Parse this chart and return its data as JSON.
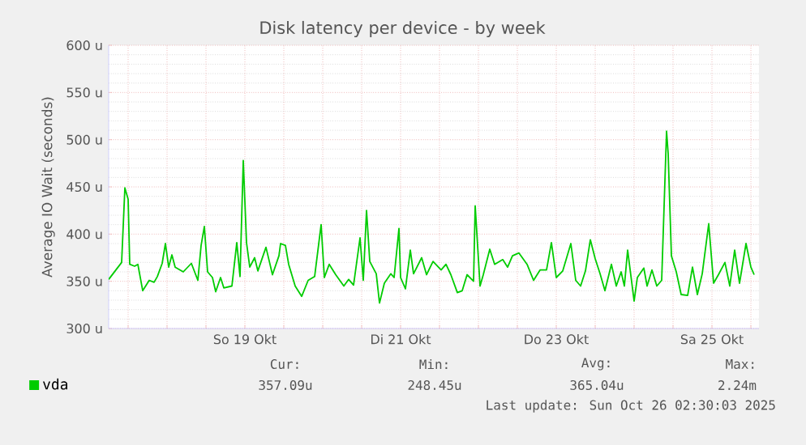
{
  "chart_data": {
    "type": "line",
    "title": "Disk latency per device - by week",
    "ylabel": "Average IO Wait (seconds)",
    "x": [
      "2025-10-17T18:00",
      "2025-10-17T22:00",
      "2025-10-17T23:00",
      "2025-10-18T00:00",
      "2025-10-18T00:30",
      "2025-10-18T02:00",
      "2025-10-18T03:00",
      "2025-10-18T04:30",
      "2025-10-18T06:30",
      "2025-10-18T08:00",
      "2025-10-18T09:00",
      "2025-10-18T10:30",
      "2025-10-18T11:30",
      "2025-10-18T12:30",
      "2025-10-18T13:30",
      "2025-10-18T14:30",
      "2025-10-18T17:00",
      "2025-10-18T19:30",
      "2025-10-18T21:30",
      "2025-10-18T22:30",
      "2025-10-18T23:30",
      "2025-10-19T00:30",
      "2025-10-19T02:00",
      "2025-10-19T03:00",
      "2025-10-19T04:30",
      "2025-10-19T05:30",
      "2025-10-19T08:00",
      "2025-10-19T09:30",
      "2025-10-19T10:30",
      "2025-10-19T11:30",
      "2025-10-19T12:30",
      "2025-10-19T13:30",
      "2025-10-19T15:00",
      "2025-10-19T16:00",
      "2025-10-19T18:30",
      "2025-10-19T20:30",
      "2025-10-19T22:30",
      "2025-10-19T23:00",
      "2025-10-20T00:30",
      "2025-10-20T01:30",
      "2025-10-20T03:30",
      "2025-10-20T05:30",
      "2025-10-20T07:30",
      "2025-10-20T09:30",
      "2025-10-20T11:30",
      "2025-10-20T12:30",
      "2025-10-20T14:00",
      "2025-10-20T16:00",
      "2025-10-20T18:30",
      "2025-10-20T20:00",
      "2025-10-20T21:30",
      "2025-10-20T23:30",
      "2025-10-21T00:30",
      "2025-10-21T01:30",
      "2025-10-21T02:30",
      "2025-10-21T04:30",
      "2025-10-21T05:30",
      "2025-10-21T07:00",
      "2025-10-21T09:00",
      "2025-10-21T10:00",
      "2025-10-21T11:30",
      "2025-10-21T12:00",
      "2025-10-21T13:30",
      "2025-10-21T15:00",
      "2025-10-21T16:00",
      "2025-10-21T18:30",
      "2025-10-21T20:00",
      "2025-10-21T22:00",
      "2025-10-22T00:30",
      "2025-10-22T02:00",
      "2025-10-22T03:30",
      "2025-10-22T05:30",
      "2025-10-22T07:00",
      "2025-10-22T08:30",
      "2025-10-22T10:30",
      "2025-10-22T11:00",
      "2025-10-22T12:30",
      "2025-10-22T13:30",
      "2025-10-22T15:30",
      "2025-10-22T17:00",
      "2025-10-22T19:30",
      "2025-10-22T21:00",
      "2025-10-22T22:30",
      "2025-10-23T00:30",
      "2025-10-23T03:00",
      "2025-10-23T05:00",
      "2025-10-23T07:00",
      "2025-10-23T09:00",
      "2025-10-23T10:30",
      "2025-10-23T12:00",
      "2025-10-23T14:00",
      "2025-10-23T16:30",
      "2025-10-23T18:00",
      "2025-10-23T19:30",
      "2025-10-23T21:00",
      "2025-10-23T22:30",
      "2025-10-24T00:00",
      "2025-10-24T01:30",
      "2025-10-24T03:00",
      "2025-10-24T05:00",
      "2025-10-24T06:30",
      "2025-10-24T08:00",
      "2025-10-24T09:00",
      "2025-10-24T10:00",
      "2025-10-24T12:00",
      "2025-10-24T13:00",
      "2025-10-24T15:00",
      "2025-10-24T16:00",
      "2025-10-24T17:30",
      "2025-10-24T19:00",
      "2025-10-24T20:30",
      "2025-10-24T22:00",
      "2025-10-24T22:30",
      "2025-10-24T23:30",
      "2025-10-25T01:00",
      "2025-10-25T02:30",
      "2025-10-25T04:30",
      "2025-10-25T06:00",
      "2025-10-25T07:30",
      "2025-10-25T09:00",
      "2025-10-25T11:00",
      "2025-10-25T12:30",
      "2025-10-25T14:00",
      "2025-10-25T16:00",
      "2025-10-25T17:30",
      "2025-10-25T19:00",
      "2025-10-25T20:30",
      "2025-10-25T22:30",
      "2025-10-26T00:00",
      "2025-10-26T01:00"
    ],
    "series": [
      {
        "name": "vda",
        "color": "#00cc00",
        "values": [
          352,
          370,
          449,
          437,
          368,
          366,
          368,
          340,
          351,
          349,
          355,
          369,
          390,
          365,
          378,
          365,
          360,
          369,
          351,
          388,
          408,
          360,
          354,
          339,
          354,
          343,
          345,
          391,
          355,
          478,
          391,
          365,
          375,
          361,
          386,
          357,
          377,
          390,
          388,
          368,
          345,
          334,
          351,
          355,
          410,
          354,
          368,
          357,
          345,
          352,
          346,
          396,
          351,
          425,
          371,
          358,
          327,
          348,
          358,
          354,
          406,
          354,
          342,
          383,
          358,
          375,
          357,
          371,
          362,
          368,
          357,
          338,
          340,
          357,
          350,
          430,
          345,
          357,
          384,
          368,
          373,
          365,
          377,
          380,
          368,
          351,
          362,
          362,
          391,
          354,
          361,
          390,
          351,
          345,
          361,
          394,
          374,
          358,
          340,
          368,
          345,
          360,
          345,
          383,
          329,
          354,
          364,
          345,
          362,
          345,
          351,
          509,
          485,
          377,
          360,
          336,
          335,
          365,
          336,
          358,
          411,
          348,
          357,
          370,
          345,
          383,
          348,
          390,
          365,
          357
        ]
      }
    ],
    "xlim": [
      "2025-10-17T18:00",
      "2025-10-26T02:30"
    ],
    "xticks": [
      {
        "value": "2025-10-18T00:00",
        "label": null
      },
      {
        "value": "2025-10-18T12:00",
        "label": null
      },
      {
        "value": "2025-10-19T00:00",
        "label": null
      },
      {
        "value": "2025-10-19T12:00",
        "label": "So 19 Okt"
      },
      {
        "value": "2025-10-20T00:00",
        "label": null
      },
      {
        "value": "2025-10-20T12:00",
        "label": null
      },
      {
        "value": "2025-10-21T00:00",
        "label": null
      },
      {
        "value": "2025-10-21T12:00",
        "label": "Di 21 Okt"
      },
      {
        "value": "2025-10-22T00:00",
        "label": null
      },
      {
        "value": "2025-10-22T12:00",
        "label": null
      },
      {
        "value": "2025-10-23T00:00",
        "label": null
      },
      {
        "value": "2025-10-23T12:00",
        "label": "Do 23 Okt"
      },
      {
        "value": "2025-10-24T00:00",
        "label": null
      },
      {
        "value": "2025-10-24T12:00",
        "label": null
      },
      {
        "value": "2025-10-25T00:00",
        "label": null
      },
      {
        "value": "2025-10-25T12:00",
        "label": "Sa 25 Okt"
      },
      {
        "value": "2025-10-26T00:00",
        "label": null
      }
    ],
    "ylim": [
      300,
      600
    ],
    "yticks": [
      {
        "value": 300,
        "label": "300 u"
      },
      {
        "value": 350,
        "label": "350 u"
      },
      {
        "value": 400,
        "label": "400 u"
      },
      {
        "value": 450,
        "label": "450 u"
      },
      {
        "value": 500,
        "label": "500 u"
      },
      {
        "value": 550,
        "label": "550 u"
      },
      {
        "value": 600,
        "label": "600 u"
      }
    ],
    "grid": true,
    "legend": "bottom",
    "marker": "none",
    "line_style": "solid",
    "annotations": [
      "Cur:",
      "357.09u",
      "Min:",
      "248.45u",
      "Avg:",
      "365.04u",
      "Max:",
      "2.24m",
      "Last update: Sun Oct 26 02:30:03 2025"
    ]
  }
}
